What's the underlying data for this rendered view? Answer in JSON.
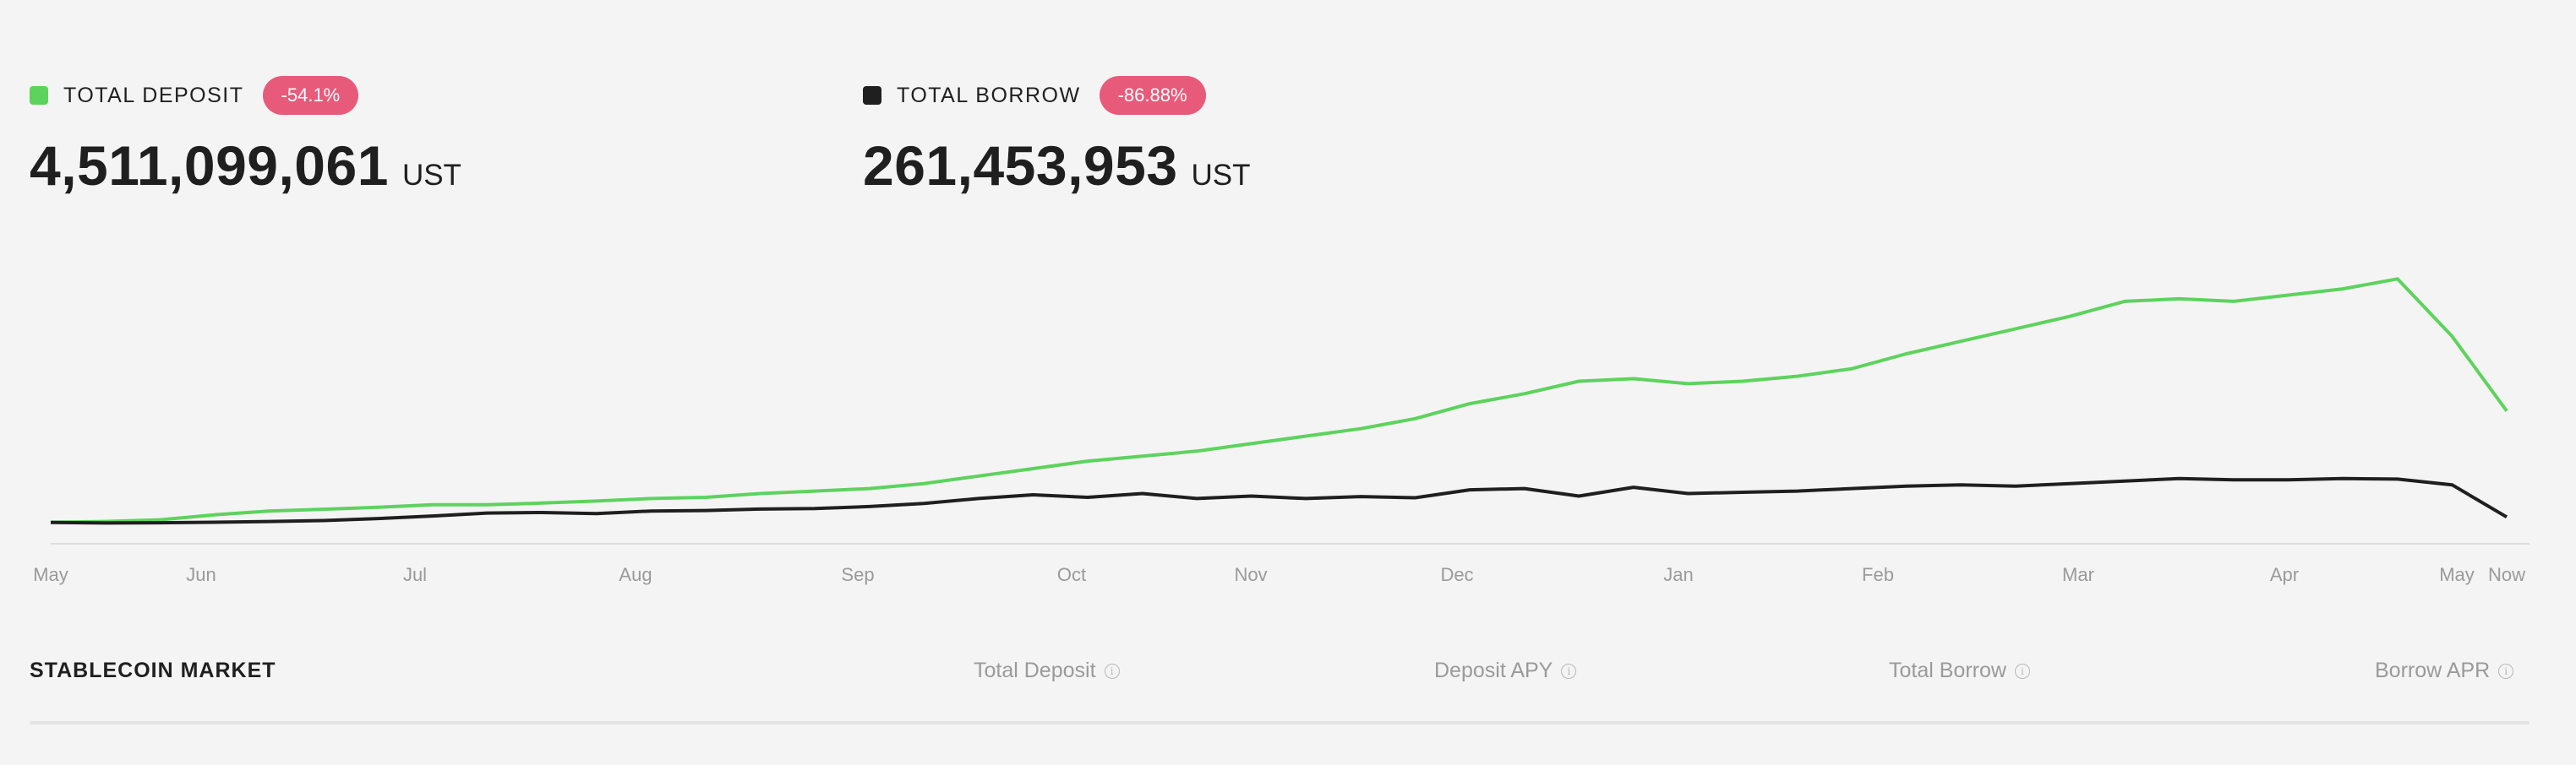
{
  "stats": {
    "deposit": {
      "label": "TOTAL DEPOSIT",
      "change": "-54.1%",
      "value": "4,511,099,061",
      "unit": "UST",
      "swatch_color": "#5dd35d"
    },
    "borrow": {
      "label": "TOTAL BORROW",
      "change": "-86.88%",
      "value": "261,453,953",
      "unit": "UST",
      "swatch_color": "#1f1f1f"
    },
    "badge_color": "#e85a7a"
  },
  "chart_data": {
    "type": "line",
    "x_ticks": [
      "May",
      "Jun",
      "Jul",
      "Aug",
      "Sep",
      "Oct",
      "Nov",
      "Dec",
      "Jan",
      "Feb",
      "Mar",
      "Apr",
      "May",
      "Now"
    ],
    "grid": false,
    "legend": "none",
    "series": [
      {
        "name": "TOTAL DEPOSIT",
        "color": "#5dd35d",
        "values": [
          0.05,
          0.08,
          0.15,
          0.35,
          0.5,
          0.57,
          0.65,
          0.75,
          0.75,
          0.82,
          0.9,
          1.0,
          1.05,
          1.2,
          1.3,
          1.4,
          1.6,
          1.9,
          2.2,
          2.5,
          2.7,
          2.9,
          3.2,
          3.5,
          3.8,
          4.2,
          4.8,
          5.2,
          5.7,
          5.8,
          5.6,
          5.7,
          5.9,
          6.2,
          6.8,
          7.3,
          7.8,
          8.3,
          8.9,
          9.0,
          8.9,
          9.15,
          9.4,
          9.8,
          7.5,
          4.51
        ]
      },
      {
        "name": "TOTAL BORROW",
        "color": "#1f1f1f",
        "values": [
          0.04,
          0.02,
          0.03,
          0.05,
          0.08,
          0.12,
          0.2,
          0.3,
          0.42,
          0.44,
          0.4,
          0.5,
          0.52,
          0.58,
          0.6,
          0.68,
          0.8,
          1.0,
          1.15,
          1.05,
          1.2,
          1.0,
          1.1,
          1.0,
          1.08,
          1.03,
          1.35,
          1.4,
          1.1,
          1.45,
          1.2,
          1.25,
          1.3,
          1.4,
          1.5,
          1.55,
          1.5,
          1.6,
          1.7,
          1.8,
          1.75,
          1.75,
          1.8,
          1.78,
          1.55,
          0.26
        ]
      }
    ]
  },
  "table": {
    "title": "STABLECOIN MARKET",
    "columns": [
      "Total Deposit",
      "Deposit APY",
      "Total Borrow",
      "Borrow APR"
    ]
  }
}
